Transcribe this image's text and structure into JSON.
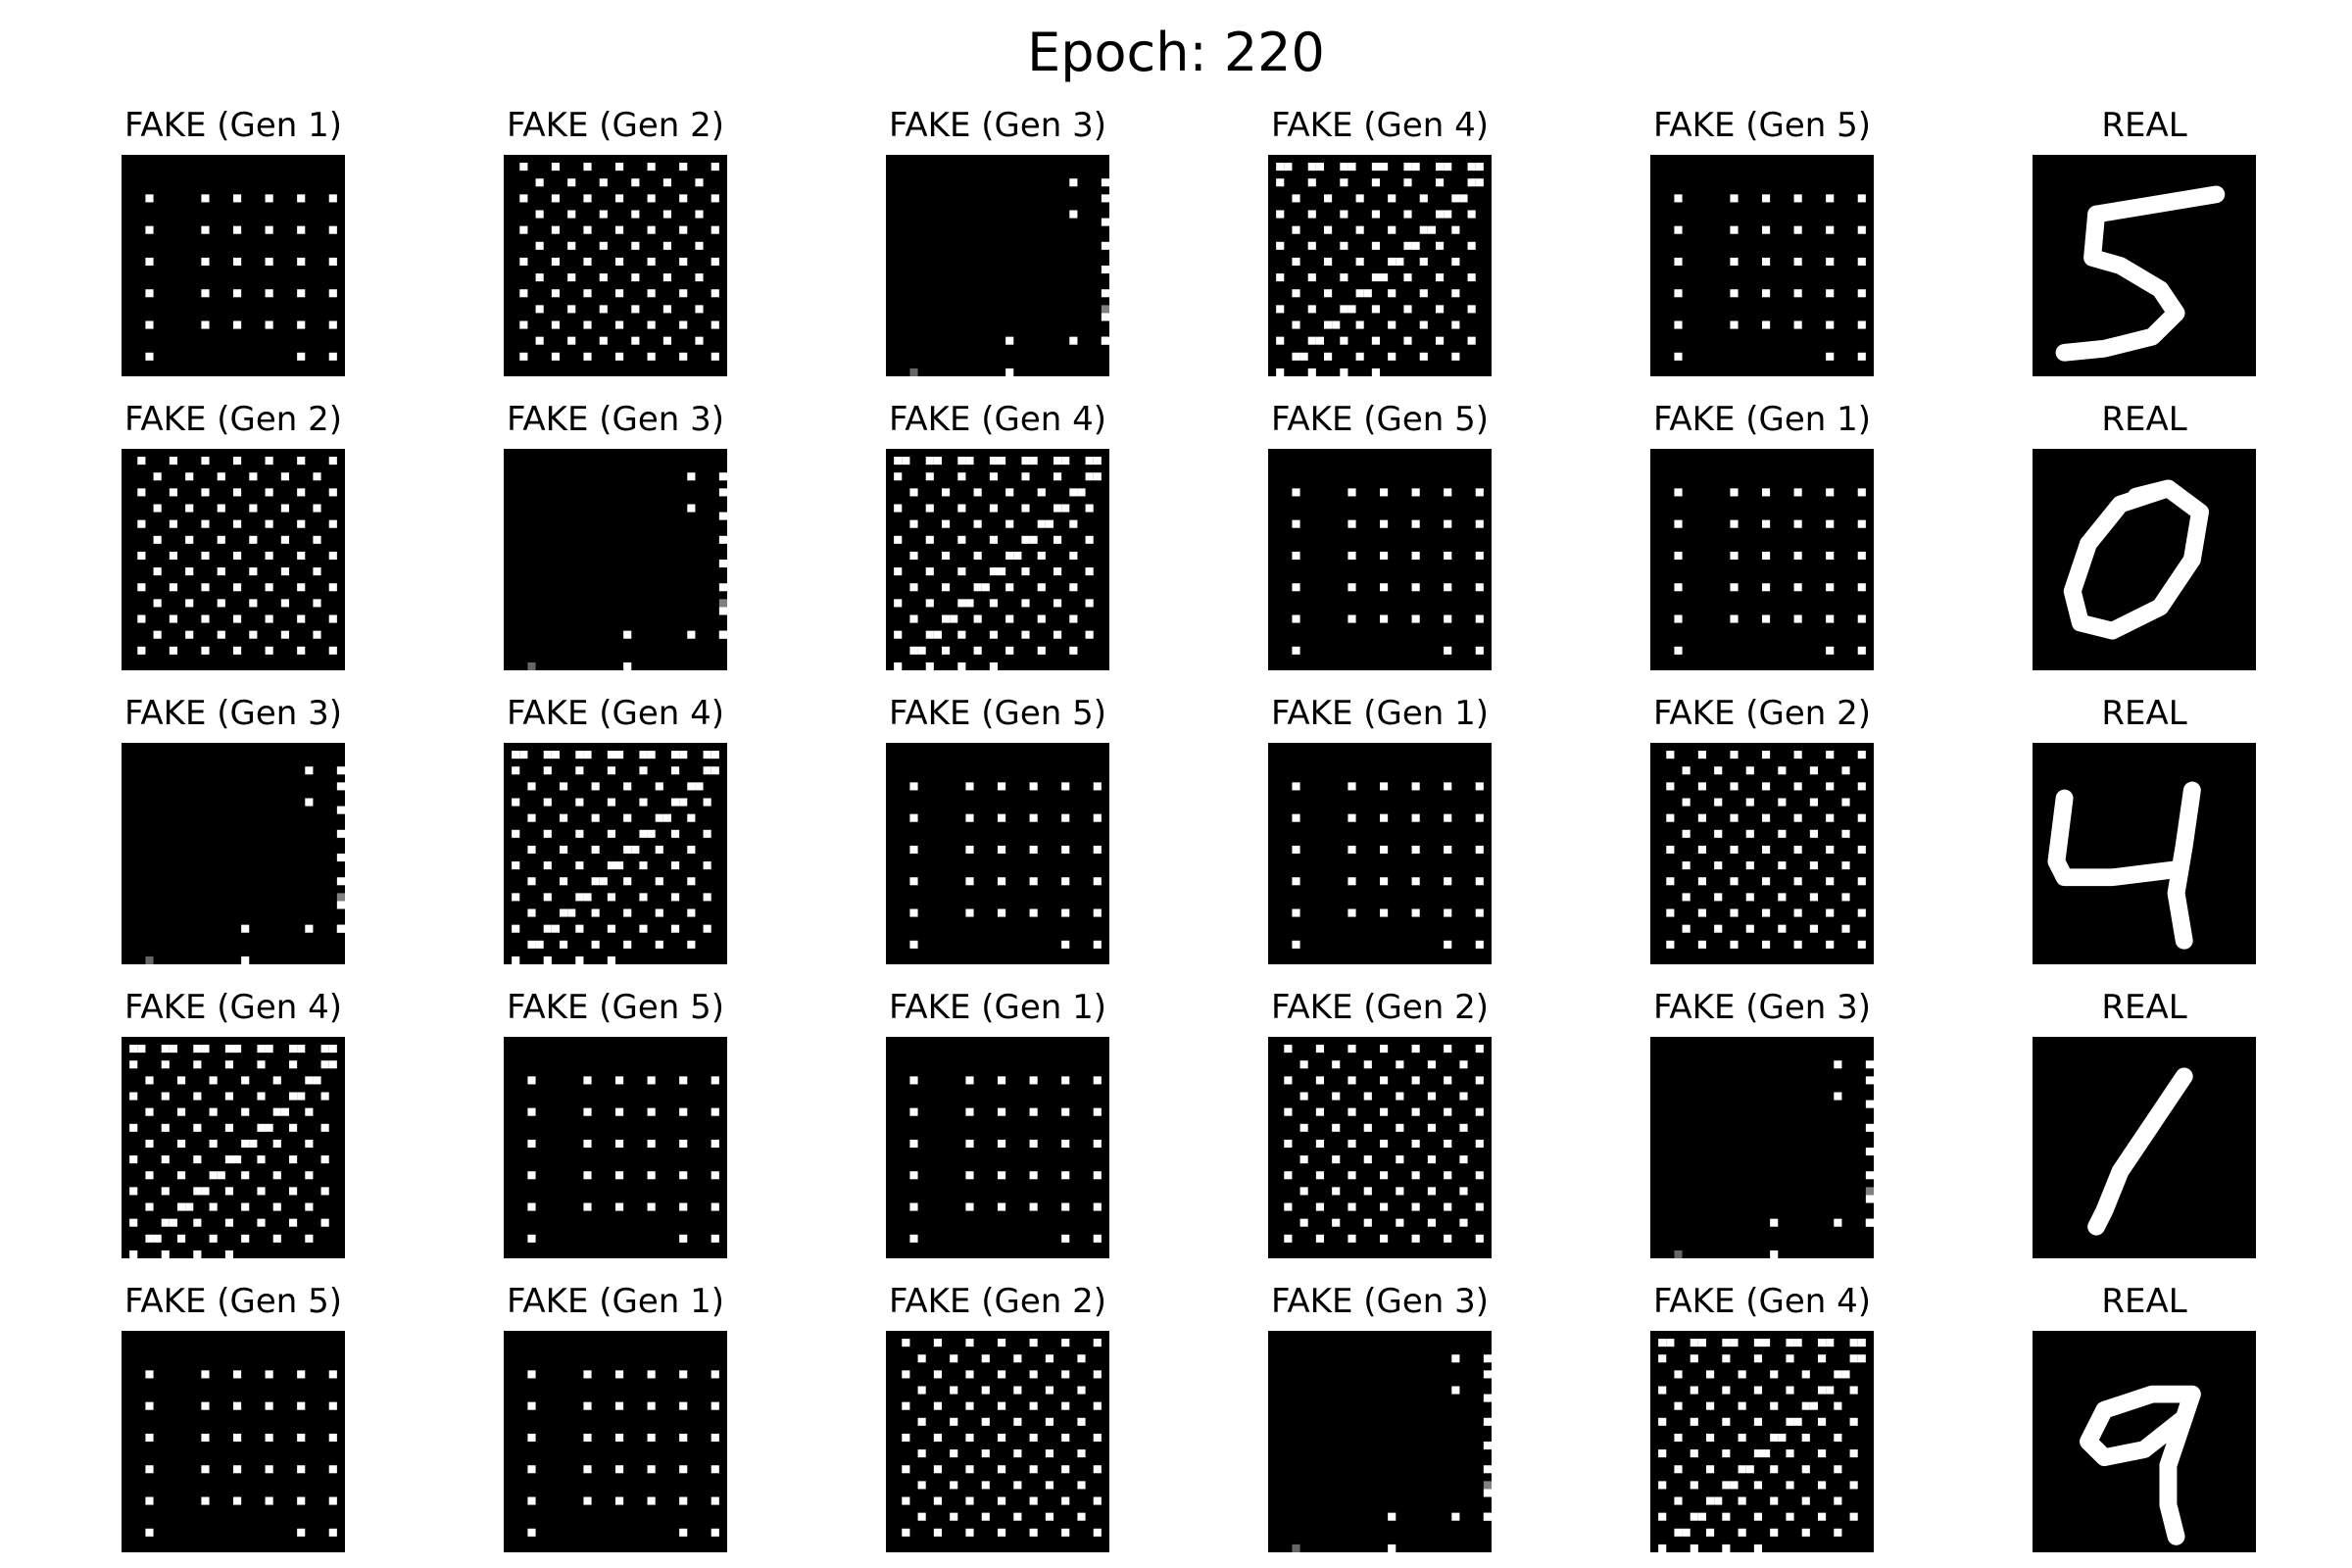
{
  "figure_title": "Epoch: 220",
  "digit_images": [
    "5",
    "0",
    "4",
    "1",
    "9"
  ],
  "panel_colors": {
    "background": "#000000",
    "pixel": "#ffffff"
  },
  "rows": [
    [
      "FAKE (Gen 1)",
      "FAKE (Gen 2)",
      "FAKE (Gen 3)",
      "FAKE (Gen 4)",
      "FAKE (Gen 5)",
      "REAL"
    ],
    [
      "FAKE (Gen 2)",
      "FAKE (Gen 3)",
      "FAKE (Gen 4)",
      "FAKE (Gen 5)",
      "FAKE (Gen 1)",
      "REAL"
    ],
    [
      "FAKE (Gen 3)",
      "FAKE (Gen 4)",
      "FAKE (Gen 5)",
      "FAKE (Gen 1)",
      "FAKE (Gen 2)",
      "REAL"
    ],
    [
      "FAKE (Gen 4)",
      "FAKE (Gen 5)",
      "FAKE (Gen 1)",
      "FAKE (Gen 2)",
      "FAKE (Gen 3)",
      "REAL"
    ],
    [
      "FAKE (Gen 5)",
      "FAKE (Gen 1)",
      "FAKE (Gen 2)",
      "FAKE (Gen 3)",
      "FAKE (Gen 4)",
      "REAL"
    ]
  ]
}
